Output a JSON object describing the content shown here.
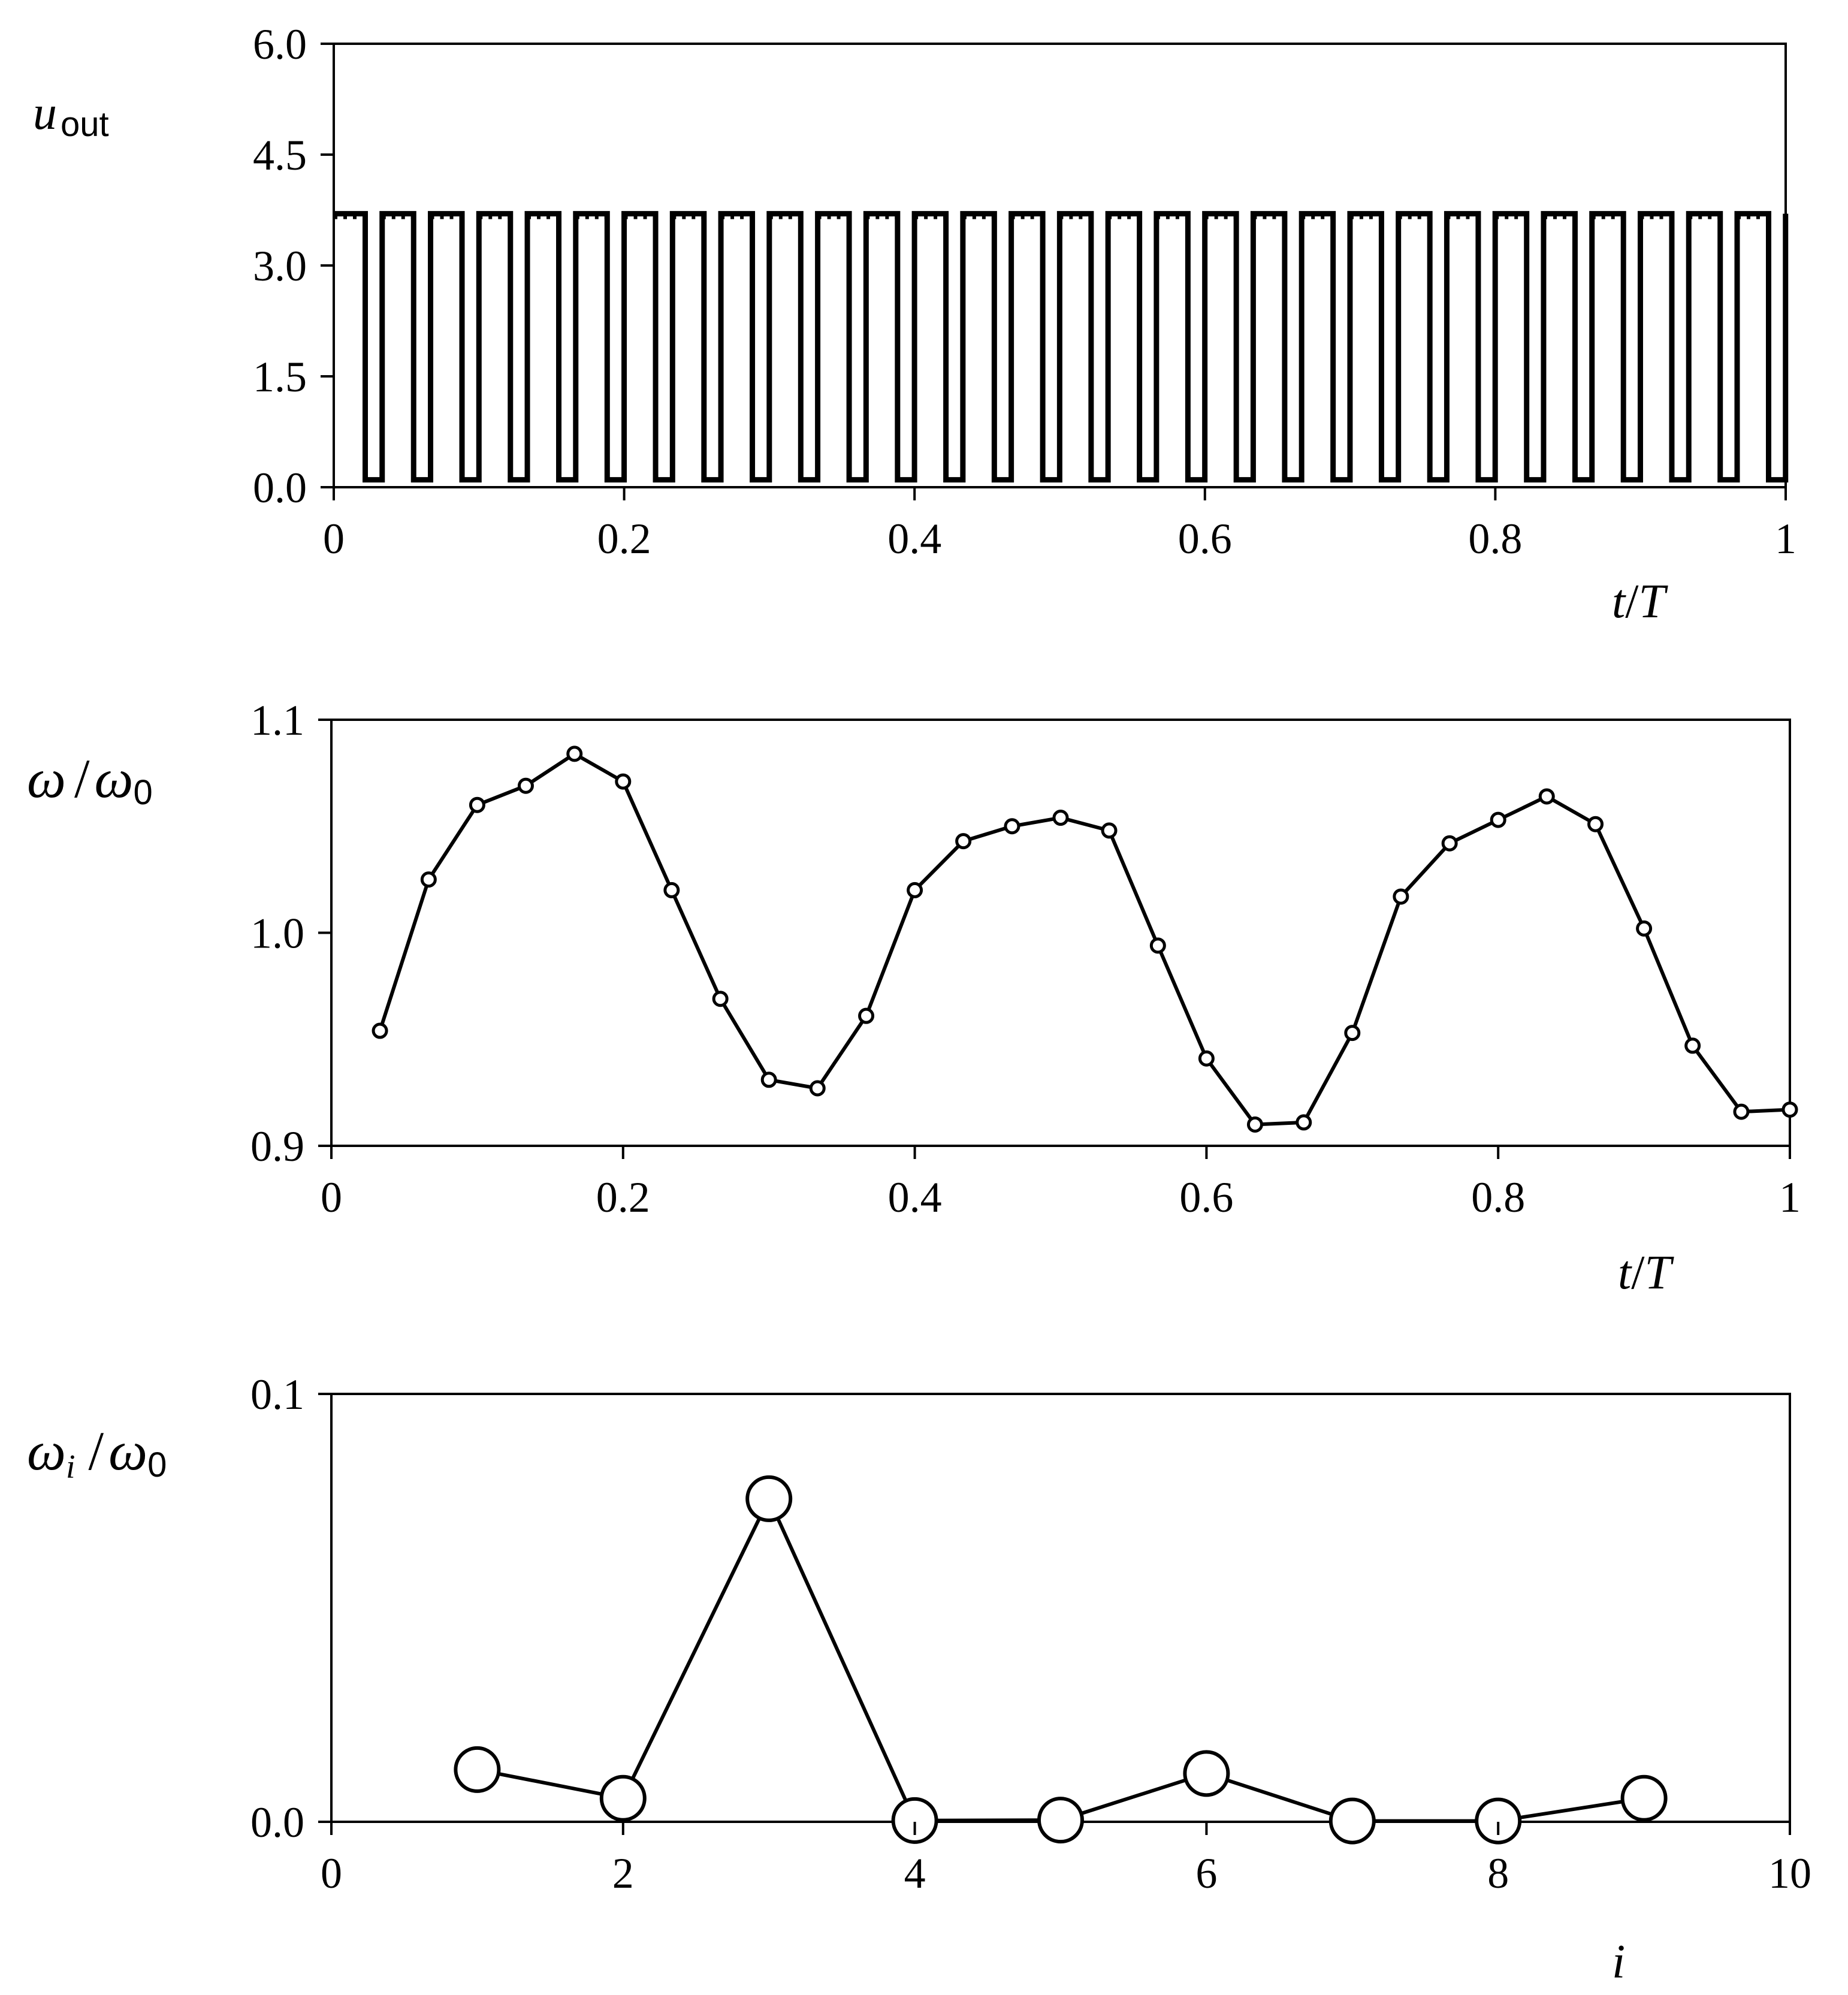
{
  "chart_data": [
    {
      "type": "line",
      "xlim": [
        0,
        1
      ],
      "ylim": [
        0,
        6
      ],
      "x_ticks": [
        "0",
        "0.2",
        "0.4",
        "0.6",
        "0.8",
        "1"
      ],
      "y_ticks": [
        "0.0",
        "1.5",
        "3.0",
        "4.5",
        "6.0"
      ],
      "xlabel": {
        "italic": "t",
        "sep": "/",
        "italic2": "T"
      },
      "ylabel": {
        "main": "u",
        "sub": "out"
      },
      "grid": false,
      "legend": "none",
      "series": [
        {
          "pulse_train": true,
          "period": 0.03333,
          "high_level": 3.7,
          "low_level": 0.1,
          "low_duration_fraction": 0.35,
          "cycles": 30
        }
      ]
    },
    {
      "type": "line",
      "xlim": [
        0,
        1
      ],
      "ylim": [
        0.9,
        1.1
      ],
      "x_ticks": [
        "0",
        "0.2",
        "0.4",
        "0.6",
        "0.8",
        "1"
      ],
      "y_ticks": [
        "0.9",
        "1.0",
        "1.1"
      ],
      "xlabel": {
        "italic": "t",
        "sep": "/",
        "italic2": "T"
      },
      "ylabel": {
        "main": "ω",
        "sep": "/",
        "main2": "ω",
        "sub2": "0"
      },
      "grid": false,
      "legend": "none",
      "series": [
        {
          "marker": "open-circle",
          "x": [
            0.0333,
            0.0667,
            0.1,
            0.1333,
            0.1667,
            0.2,
            0.2333,
            0.2667,
            0.3,
            0.3333,
            0.3667,
            0.4,
            0.4333,
            0.4667,
            0.5,
            0.5333,
            0.5667,
            0.6,
            0.6333,
            0.6667,
            0.7,
            0.7333,
            0.7667,
            0.8,
            0.8333,
            0.8667,
            0.9,
            0.9333,
            0.9667,
            1.0
          ],
          "y": [
            0.954,
            1.025,
            1.06,
            1.069,
            1.084,
            1.071,
            1.02,
            0.969,
            0.931,
            0.927,
            0.961,
            1.02,
            1.043,
            1.05,
            1.054,
            1.048,
            0.994,
            0.941,
            0.91,
            0.911,
            0.953,
            1.017,
            1.042,
            1.053,
            1.064,
            1.051,
            1.002,
            0.947,
            0.916,
            0.917
          ]
        }
      ]
    },
    {
      "type": "line",
      "xlim": [
        0,
        10
      ],
      "ylim": [
        0,
        0.1
      ],
      "x_ticks": [
        "0",
        "2",
        "4",
        "6",
        "8",
        "10"
      ],
      "y_ticks": [
        "0.0",
        "0.1"
      ],
      "xlabel": {
        "italic": "i"
      },
      "ylabel": {
        "main": "ω",
        "sub": "i",
        "sep": "/",
        "main2": "ω",
        "sub2": "0"
      },
      "grid": false,
      "legend": "none",
      "series": [
        {
          "marker": "large-open-circle",
          "x": [
            1,
            2,
            3,
            4,
            5,
            6,
            7,
            8,
            9
          ],
          "y": [
            0.0122,
            0.0055,
            0.0755,
            0.0003,
            0.0004,
            0.0113,
            0.0002,
            0.0002,
            0.0055
          ]
        }
      ]
    }
  ]
}
